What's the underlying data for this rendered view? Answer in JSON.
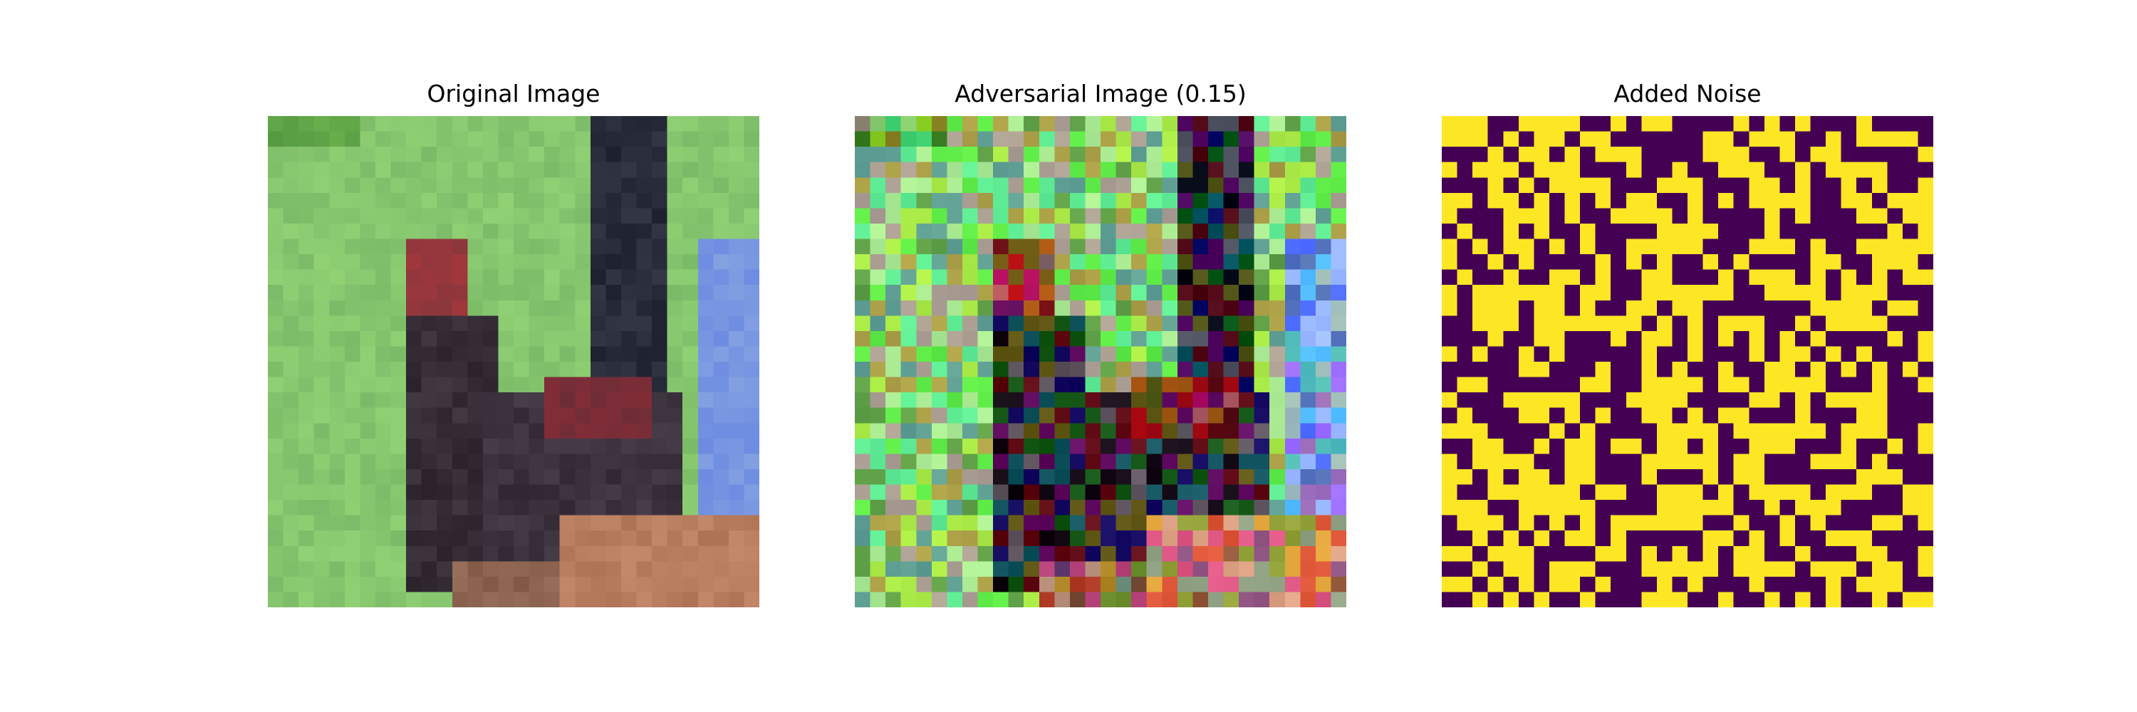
{
  "figure": {
    "panels": [
      {
        "title": "Original Image",
        "kind": "photo",
        "grid": 32
      },
      {
        "title": "Adversarial Image (0.15)",
        "kind": "adversarial",
        "grid": 32
      },
      {
        "title": "Added Noise",
        "kind": "noise",
        "grid": 32
      }
    ],
    "colors": {
      "background": "#ffffff",
      "grass": "#86c66e",
      "noise_high": "#fde725",
      "noise_low": "#440154"
    }
  }
}
